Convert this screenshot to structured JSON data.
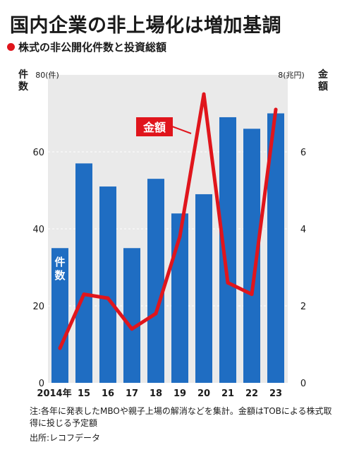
{
  "title": "国内企業の非上場化は増加基調",
  "subtitle": "株式の非公開化件数と投資総額",
  "colors": {
    "bar": "#1f6dc2",
    "line": "#e0151c",
    "plot_bg": "#eaeaea",
    "label_text": "#ffffff"
  },
  "chart_data": {
    "type": "bar",
    "categories": [
      "2014年",
      "15",
      "16",
      "17",
      "18",
      "19",
      "20",
      "21",
      "22",
      "23"
    ],
    "series": [
      {
        "name": "件数",
        "type": "bar",
        "axis": "left",
        "values": [
          35,
          57,
          51,
          35,
          53,
          44,
          49,
          69,
          66,
          70
        ]
      },
      {
        "name": "金額",
        "type": "line",
        "axis": "right",
        "values": [
          0.9,
          2.3,
          2.2,
          1.4,
          1.8,
          3.8,
          7.5,
          2.6,
          2.3,
          7.1
        ]
      }
    ],
    "left_axis": {
      "label": "件数",
      "unit": "80(件)",
      "ylim": [
        0,
        80
      ],
      "ticks": [
        "0",
        "20",
        "40",
        "60"
      ]
    },
    "right_axis": {
      "label": "金額",
      "unit": "8(兆円)",
      "ylim": [
        0,
        8
      ],
      "ticks": [
        "0",
        "2",
        "4",
        "6"
      ]
    },
    "grid": true
  },
  "note": "注:各年に発表したMBOや親子上場の解消などを集計。金額はTOBによる株式取得に投じる予定額",
  "source": "出所:レコフデータ"
}
